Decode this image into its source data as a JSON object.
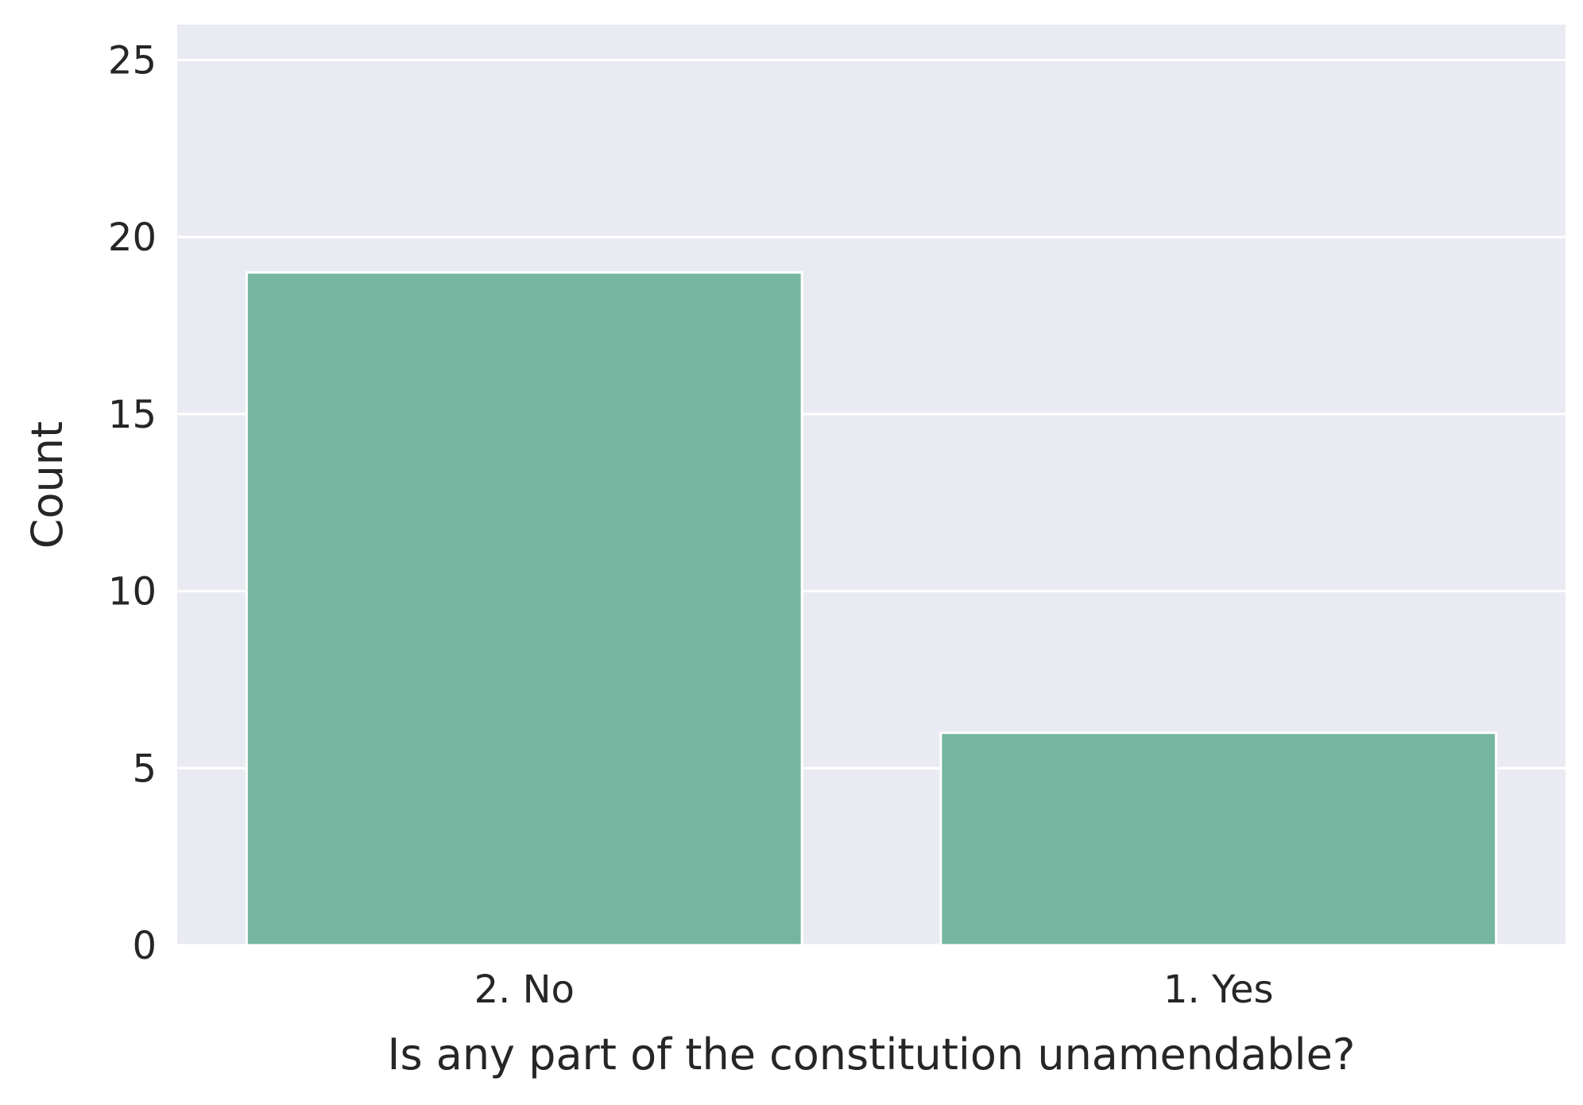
{
  "chart_data": {
    "type": "bar",
    "title": "",
    "xlabel": "Is any part of the constitution unamendable?",
    "ylabel": "Count",
    "categories": [
      "2. No",
      "1. Yes"
    ],
    "values": [
      19,
      6
    ],
    "ylim": [
      0,
      26
    ],
    "yticks": [
      "0",
      "5",
      "10",
      "15",
      "20",
      "25"
    ],
    "grid": true,
    "legend": "none",
    "colors": {
      "bar": "#76b5a0",
      "plot_background": "#eaeaf2",
      "gridline": "#ffffff",
      "text": "#262626"
    }
  }
}
